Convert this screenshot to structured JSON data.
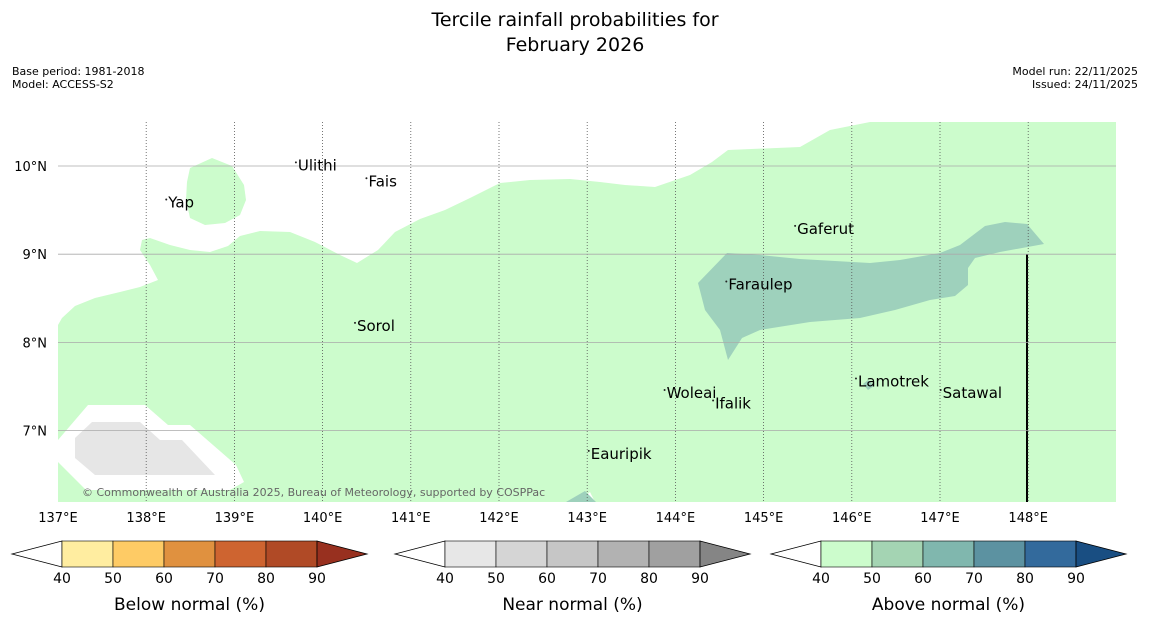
{
  "title": {
    "line1": "Tercile rainfall probabilities for",
    "line2": "February 2026"
  },
  "meta": {
    "base_period": "Base period: 1981-2018",
    "model": "Model: ACCESS-S2",
    "model_run": "Model run: 22/11/2025",
    "issued": "Issued: 24/11/2025"
  },
  "map": {
    "lon_labels": [
      "137°E",
      "138°E",
      "139°E",
      "140°E",
      "141°E",
      "142°E",
      "143°E",
      "144°E",
      "145°E",
      "146°E",
      "147°E",
      "148°E"
    ],
    "lat_labels": [
      "10°N",
      "9°N",
      "8°N",
      "7°N"
    ],
    "places": [
      {
        "name": "Yap",
        "lon": 138.25,
        "lat": 9.53
      },
      {
        "name": "Ulithi",
        "lon": 139.72,
        "lat": 9.95
      },
      {
        "name": "Fais",
        "lon": 140.52,
        "lat": 9.77
      },
      {
        "name": "Sorol",
        "lon": 140.39,
        "lat": 8.13
      },
      {
        "name": "Gaferut",
        "lon": 145.38,
        "lat": 9.23
      },
      {
        "name": "Faraulep",
        "lon": 144.6,
        "lat": 8.6
      },
      {
        "name": "Woleai",
        "lon": 143.9,
        "lat": 7.37
      },
      {
        "name": "Ifalik",
        "lon": 144.45,
        "lat": 7.25
      },
      {
        "name": "Lamotrek",
        "lon": 146.07,
        "lat": 7.5
      },
      {
        "name": "Satawal",
        "lon": 147.03,
        "lat": 7.37
      },
      {
        "name": "Eauripik",
        "lon": 143.04,
        "lat": 6.68
      }
    ],
    "copyright": "© Commonwealth of Australia 2025, Bureau of Meteorology, supported by COSPPac"
  },
  "colorbars": [
    {
      "label": "Below normal (%)",
      "ticks": [
        "40",
        "50",
        "60",
        "70",
        "80",
        "90"
      ],
      "colors": [
        "#ffeda0",
        "#fecb65",
        "#e0913f",
        "#ce6430",
        "#b04a26"
      ],
      "low": "#ffffff",
      "high": "#98301f"
    },
    {
      "label": "Near normal (%)",
      "ticks": [
        "40",
        "50",
        "60",
        "70",
        "80",
        "90"
      ],
      "colors": [
        "#e7e7e7",
        "#d5d5d5",
        "#c6c6c6",
        "#b2b2b2",
        "#a0a0a0"
      ],
      "low": "#ffffff",
      "high": "#858585"
    },
    {
      "label": "Above normal (%)",
      "ticks": [
        "40",
        "50",
        "60",
        "70",
        "80",
        "90"
      ],
      "colors": [
        "#ccfccc",
        "#a4d4b3",
        "#80b7ae",
        "#5c92a1",
        "#336a9c"
      ],
      "low": "#ffffff",
      "high": "#194e82"
    }
  ],
  "colors": {
    "above_50_60": "#ccfccc",
    "above_60_70": "#9ed1bc",
    "near_50_60": "#e6e6e6"
  }
}
